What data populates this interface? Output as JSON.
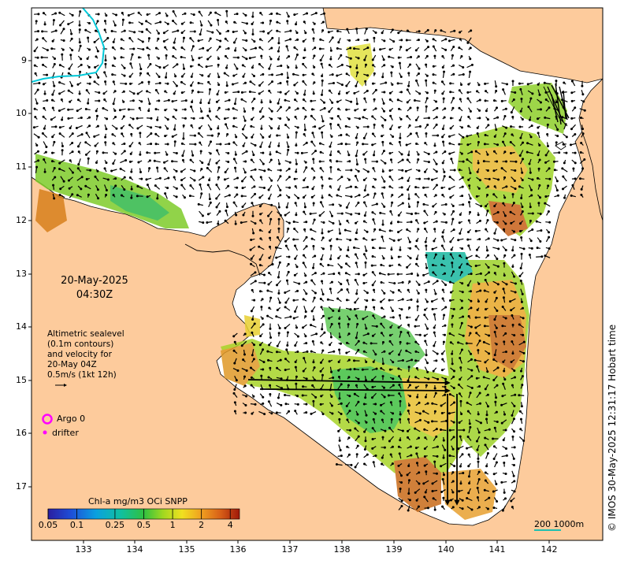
{
  "map": {
    "y_ticks": [
      "9",
      "10",
      "11",
      "12",
      "13",
      "14",
      "15",
      "16",
      "17"
    ],
    "x_ticks": [
      "133",
      "134",
      "135",
      "136",
      "137",
      "138",
      "139",
      "140",
      "141",
      "142"
    ],
    "lat_range": [
      -17.7,
      -8.0
    ],
    "lon_range": [
      132.0,
      143.0
    ],
    "colors": {
      "land": "#fdcb9c",
      "sea": "#ffffff",
      "coast": "#000000",
      "boundary": "#00c8d8",
      "argo": "#ff00ff",
      "scale": "#20c0b0"
    }
  },
  "annotations": {
    "date_line1": "20-May-2025",
    "date_line2": "04:30Z",
    "alti_line1": "Altimetric sealevel",
    "alti_line2": "(0.1m contours)",
    "alti_line3": "and velocity for",
    "alti_line4": "20-May 04Z",
    "alti_line5": "0.5m/s (1kt 12h)"
  },
  "legend": {
    "argo_label": "Argo 0",
    "drifter_label": "drifter"
  },
  "colorbar": {
    "title": "Chl-a mg/m3 OCi SNPP",
    "ticks": [
      "0.05",
      "0.1",
      "0.25",
      "0.5",
      "1",
      "2",
      "4"
    ],
    "tick_values": [
      0.05,
      0.1,
      0.25,
      0.5,
      1,
      2,
      4
    ],
    "range": [
      0.05,
      5
    ]
  },
  "scale_bar": {
    "label": "200  1000m"
  },
  "credit": "© IMOS 30-May-2025 12:31:17 Hobart time"
}
